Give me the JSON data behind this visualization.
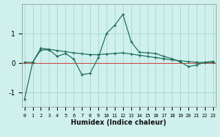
{
  "xlabel": "Humidex (Indice chaleur)",
  "bg_color": "#cff0ec",
  "grid_color": "#aad8d3",
  "line_color": "#1a6b5a",
  "x_values": [
    0,
    1,
    2,
    3,
    4,
    5,
    6,
    7,
    8,
    9,
    10,
    11,
    12,
    13,
    14,
    15,
    16,
    17,
    18,
    19,
    20,
    21,
    22,
    23
  ],
  "y_curve": [
    -1.25,
    0.02,
    0.44,
    0.44,
    0.22,
    0.32,
    0.13,
    -0.4,
    -0.36,
    0.18,
    1.0,
    1.28,
    1.65,
    0.72,
    0.36,
    0.34,
    0.32,
    0.22,
    0.14,
    0.03,
    -0.13,
    -0.07,
    0.02,
    0.05
  ],
  "y_line": [
    0.02,
    0.02,
    0.5,
    0.46,
    0.42,
    0.38,
    0.34,
    0.31,
    0.28,
    0.28,
    0.3,
    0.32,
    0.34,
    0.3,
    0.26,
    0.22,
    0.18,
    0.14,
    0.1,
    0.07,
    0.04,
    0.02,
    0.01,
    0.02
  ],
  "ylim": [
    -1.5,
    2.0
  ],
  "yticks": [
    -1,
    0,
    1
  ],
  "xticks": [
    0,
    1,
    2,
    3,
    4,
    5,
    6,
    7,
    8,
    9,
    10,
    11,
    12,
    13,
    14,
    15,
    16,
    17,
    18,
    19,
    20,
    21,
    22,
    23
  ]
}
